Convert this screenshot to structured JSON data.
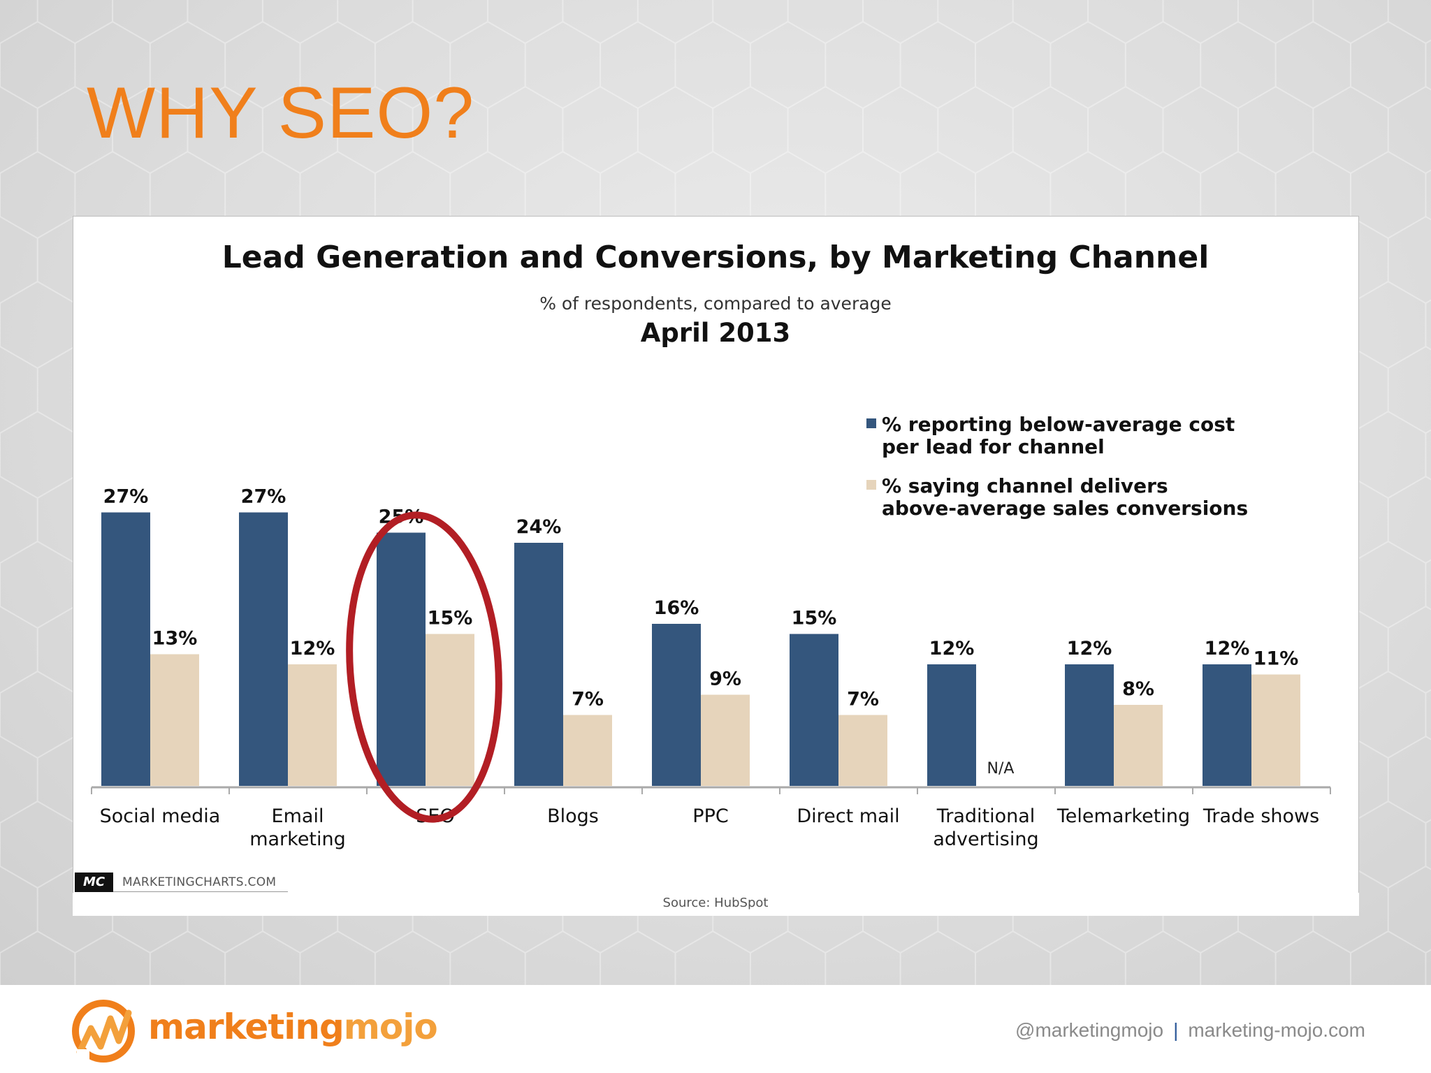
{
  "slide": {
    "title": "WHY SEO?"
  },
  "chart_data": {
    "type": "bar",
    "title": "Lead Generation and Conversions, by Marketing Channel",
    "subtitle": "% of respondents, compared to average",
    "date": "April 2013",
    "categories": [
      [
        "Social media"
      ],
      [
        "Email",
        "marketing"
      ],
      [
        "SEO"
      ],
      [
        "Blogs"
      ],
      [
        "PPC"
      ],
      [
        "Direct mail"
      ],
      [
        "Traditional",
        "advertising"
      ],
      [
        "Telemarketing"
      ],
      [
        "Trade shows"
      ]
    ],
    "series": [
      {
        "name": "% reporting below-average cost per lead for channel",
        "legend_lines": [
          "% reporting below-average cost",
          "per lead for channel"
        ],
        "color": "#34567d",
        "values": [
          27,
          27,
          25,
          24,
          16,
          15,
          12,
          12,
          12
        ],
        "labels": [
          "27%",
          "27%",
          "25%",
          "24%",
          "16%",
          "15%",
          "12%",
          "12%",
          "12%"
        ]
      },
      {
        "name": "% saying channel delivers above-average sales conversions",
        "legend_lines": [
          "% saying channel delivers",
          "above-average sales conversions"
        ],
        "color": "#e6d4bb",
        "values": [
          13,
          12,
          15,
          7,
          9,
          7,
          null,
          8,
          11
        ],
        "labels": [
          "13%",
          "12%",
          "15%",
          "7%",
          "9%",
          "7%",
          "N/A",
          "8%",
          "11%"
        ]
      }
    ],
    "ylim": [
      0,
      29
    ],
    "grid": false,
    "legend_position": "top-right",
    "highlight": {
      "category_index": 2,
      "shape": "ellipse",
      "color": "#b21e24"
    },
    "source": "Source: HubSpot"
  },
  "watermark": {
    "badge": "MC",
    "site": "MARKETINGCHARTS.COM"
  },
  "footer": {
    "brand_main": "marketing",
    "brand_accent": "mojo",
    "handle": "@marketingmojo",
    "separator": "|",
    "website": "marketing-mojo.com"
  },
  "colors": {
    "accent": "#f07f1b",
    "series_dark": "#34567d",
    "series_light": "#e6d4bb",
    "highlight": "#b21e24"
  }
}
